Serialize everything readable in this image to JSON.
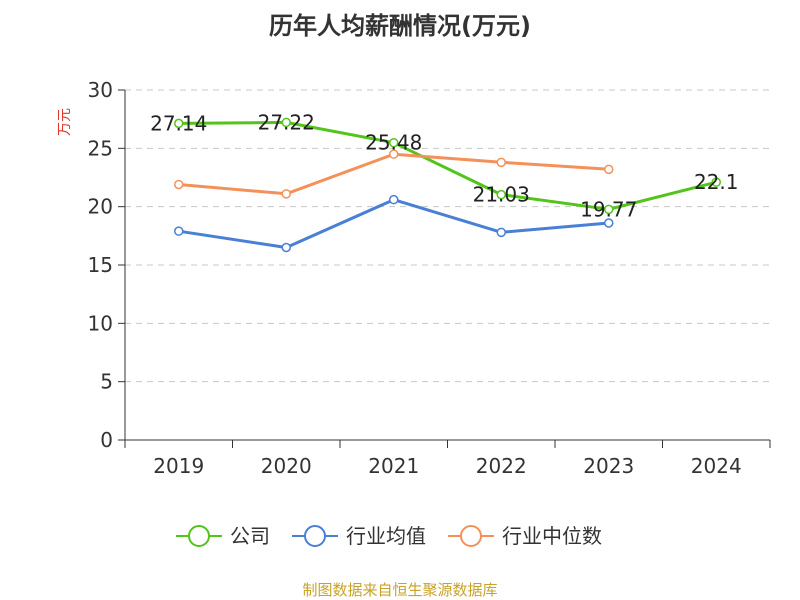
{
  "chart_data": {
    "type": "line",
    "title": "历年人均薪酬情况(万元)",
    "ylabel": "万元",
    "xlabel": "",
    "ylim": [
      0,
      30
    ],
    "yticks": [
      0,
      5,
      10,
      15,
      20,
      25,
      30
    ],
    "categories": [
      "2019",
      "2020",
      "2021",
      "2022",
      "2023",
      "2024"
    ],
    "grid": true,
    "legend_position": "bottom",
    "series": [
      {
        "name": "公司",
        "color": "#52c41a",
        "values": [
          27.14,
          27.22,
          25.48,
          21.03,
          19.77,
          22.1
        ],
        "labels": [
          "27.14",
          "27.22",
          "25.48",
          "21.03",
          "19.77",
          "22.1"
        ]
      },
      {
        "name": "行业均值",
        "color": "#4a7fd6",
        "values": [
          17.9,
          16.5,
          20.6,
          17.8,
          18.6,
          null
        ]
      },
      {
        "name": "行业中位数",
        "color": "#f4915a",
        "values": [
          21.9,
          21.1,
          24.5,
          23.8,
          23.2,
          null
        ]
      }
    ]
  },
  "source_text": "制图数据来自恒生聚源数据库"
}
